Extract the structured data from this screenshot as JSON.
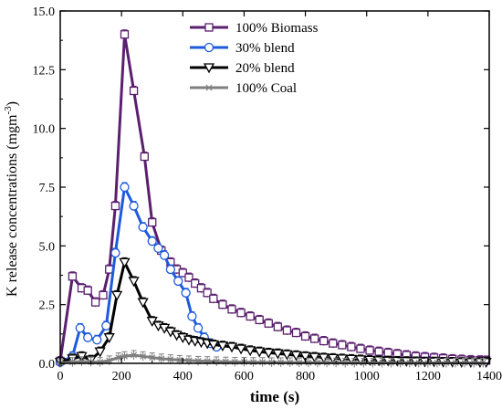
{
  "chart_data": {
    "type": "line",
    "xlabel": "time (s)",
    "ylabel_main": "K release concentrations (mgm",
    "ylabel_sup": "-3",
    "ylabel_tail": ")",
    "xlim": [
      0,
      1400
    ],
    "ylim": [
      0,
      15
    ],
    "x_ticks": [
      "0",
      "200",
      "400",
      "600",
      "800",
      "1000",
      "1200",
      "1400"
    ],
    "y_ticks": [
      "0.0",
      "2.5",
      "5.0",
      "7.5",
      "10.0",
      "12.5",
      "15.0"
    ],
    "grid": false,
    "legend_position": "top-left",
    "series": [
      {
        "name": "100% Biomass",
        "color": "#5a1f6e",
        "marker": "square",
        "points": [
          [
            0,
            0.1
          ],
          [
            40,
            3.7
          ],
          [
            70,
            3.2
          ],
          [
            90,
            3.1
          ],
          [
            115,
            2.6
          ],
          [
            140,
            2.9
          ],
          [
            160,
            4.0
          ],
          [
            180,
            6.7
          ],
          [
            210,
            14.0
          ],
          [
            240,
            11.6
          ],
          [
            275,
            8.8
          ],
          [
            300,
            6.0
          ],
          [
            330,
            4.8
          ],
          [
            360,
            4.3
          ],
          [
            380,
            4.0
          ],
          [
            400,
            3.85
          ],
          [
            420,
            3.65
          ],
          [
            440,
            3.4
          ],
          [
            460,
            3.2
          ],
          [
            480,
            3.0
          ],
          [
            500,
            2.75
          ],
          [
            530,
            2.5
          ],
          [
            560,
            2.3
          ],
          [
            590,
            2.15
          ],
          [
            620,
            2.0
          ],
          [
            650,
            1.85
          ],
          [
            680,
            1.7
          ],
          [
            710,
            1.55
          ],
          [
            740,
            1.4
          ],
          [
            770,
            1.3
          ],
          [
            800,
            1.15
          ],
          [
            830,
            1.05
          ],
          [
            860,
            0.95
          ],
          [
            890,
            0.85
          ],
          [
            920,
            0.78
          ],
          [
            950,
            0.7
          ],
          [
            980,
            0.62
          ],
          [
            1010,
            0.55
          ],
          [
            1040,
            0.5
          ],
          [
            1070,
            0.45
          ],
          [
            1100,
            0.4
          ],
          [
            1130,
            0.35
          ],
          [
            1160,
            0.3
          ],
          [
            1190,
            0.27
          ],
          [
            1220,
            0.24
          ],
          [
            1250,
            0.21
          ],
          [
            1280,
            0.18
          ],
          [
            1310,
            0.16
          ],
          [
            1340,
            0.14
          ],
          [
            1370,
            0.13
          ],
          [
            1390,
            0.12
          ]
        ]
      },
      {
        "name": "30% blend",
        "color": "#1e5adc",
        "marker": "circle",
        "points": [
          [
            0,
            0.05
          ],
          [
            40,
            0.3
          ],
          [
            65,
            1.5
          ],
          [
            90,
            1.1
          ],
          [
            120,
            1.0
          ],
          [
            150,
            1.6
          ],
          [
            180,
            4.7
          ],
          [
            210,
            7.5
          ],
          [
            240,
            6.7
          ],
          [
            270,
            5.8
          ],
          [
            300,
            5.2
          ],
          [
            320,
            4.9
          ],
          [
            340,
            4.6
          ],
          [
            360,
            4.0
          ],
          [
            385,
            3.5
          ],
          [
            410,
            3.0
          ],
          [
            430,
            2.0
          ],
          [
            450,
            1.5
          ],
          [
            470,
            1.1
          ],
          [
            490,
            0.85
          ],
          [
            510,
            0.7
          ]
        ]
      },
      {
        "name": "20% blend",
        "color": "#000000",
        "marker": "triangle-down",
        "points": [
          [
            0,
            0.05
          ],
          [
            40,
            0.2
          ],
          [
            70,
            0.3
          ],
          [
            100,
            0.15
          ],
          [
            130,
            0.5
          ],
          [
            160,
            1.1
          ],
          [
            185,
            2.9
          ],
          [
            210,
            4.3
          ],
          [
            240,
            3.5
          ],
          [
            270,
            2.6
          ],
          [
            300,
            1.8
          ],
          [
            320,
            1.6
          ],
          [
            340,
            1.5
          ],
          [
            360,
            1.35
          ],
          [
            380,
            1.2
          ],
          [
            400,
            1.1
          ],
          [
            420,
            1.0
          ],
          [
            440,
            0.95
          ],
          [
            460,
            0.9
          ],
          [
            480,
            0.85
          ],
          [
            500,
            0.8
          ],
          [
            530,
            0.75
          ],
          [
            560,
            0.7
          ],
          [
            590,
            0.62
          ],
          [
            620,
            0.55
          ],
          [
            650,
            0.5
          ],
          [
            680,
            0.45
          ],
          [
            710,
            0.42
          ],
          [
            740,
            0.38
          ],
          [
            770,
            0.34
          ],
          [
            800,
            0.3
          ],
          [
            830,
            0.27
          ],
          [
            860,
            0.24
          ],
          [
            890,
            0.22
          ],
          [
            920,
            0.2
          ],
          [
            950,
            0.18
          ],
          [
            980,
            0.16
          ],
          [
            1010,
            0.14
          ],
          [
            1040,
            0.12
          ],
          [
            1070,
            0.11
          ],
          [
            1100,
            0.1
          ],
          [
            1130,
            0.09
          ],
          [
            1160,
            0.08
          ],
          [
            1190,
            0.07
          ],
          [
            1220,
            0.07
          ],
          [
            1250,
            0.06
          ],
          [
            1280,
            0.06
          ],
          [
            1310,
            0.05
          ],
          [
            1340,
            0.05
          ],
          [
            1370,
            0.05
          ],
          [
            1390,
            0.05
          ]
        ]
      },
      {
        "name": "100% Coal",
        "color": "#7f7f7f",
        "marker": "asterisk",
        "points": [
          [
            0,
            0.02
          ],
          [
            40,
            0.05
          ],
          [
            70,
            0.08
          ],
          [
            100,
            0.06
          ],
          [
            130,
            0.05
          ],
          [
            160,
            0.12
          ],
          [
            190,
            0.25
          ],
          [
            210,
            0.3
          ],
          [
            240,
            0.35
          ],
          [
            270,
            0.3
          ],
          [
            300,
            0.25
          ],
          [
            330,
            0.2
          ],
          [
            360,
            0.17
          ],
          [
            390,
            0.14
          ],
          [
            420,
            0.12
          ],
          [
            450,
            0.1
          ],
          [
            480,
            0.09
          ],
          [
            510,
            0.08
          ],
          [
            540,
            0.07
          ],
          [
            570,
            0.06
          ],
          [
            600,
            0.06
          ],
          [
            630,
            0.05
          ],
          [
            660,
            0.05
          ],
          [
            690,
            0.04
          ],
          [
            720,
            0.04
          ],
          [
            750,
            0.04
          ],
          [
            780,
            0.03
          ],
          [
            810,
            0.03
          ],
          [
            840,
            0.03
          ],
          [
            870,
            0.03
          ],
          [
            900,
            0.03
          ],
          [
            930,
            0.02
          ],
          [
            960,
            0.02
          ],
          [
            990,
            0.02
          ],
          [
            1020,
            0.02
          ],
          [
            1050,
            0.02
          ],
          [
            1080,
            0.02
          ],
          [
            1110,
            0.02
          ],
          [
            1140,
            0.02
          ],
          [
            1170,
            0.02
          ],
          [
            1200,
            0.02
          ],
          [
            1230,
            0.02
          ],
          [
            1260,
            0.02
          ],
          [
            1290,
            0.02
          ],
          [
            1320,
            0.02
          ],
          [
            1350,
            0.02
          ],
          [
            1380,
            0.02
          ]
        ]
      }
    ]
  }
}
